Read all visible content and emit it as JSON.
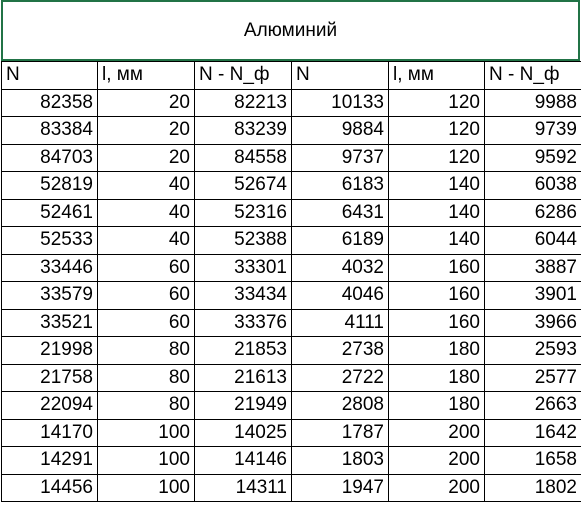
{
  "sheet": {
    "title": "Алюминий",
    "headers": [
      "N",
      "l, мм",
      "N - N_ф",
      "N",
      "l, мм",
      "N - N_ф"
    ],
    "rows": [
      [
        "82358",
        "20",
        "82213",
        "10133",
        "120",
        "9988"
      ],
      [
        "83384",
        "20",
        "83239",
        "9884",
        "120",
        "9739"
      ],
      [
        "84703",
        "20",
        "84558",
        "9737",
        "120",
        "9592"
      ],
      [
        "52819",
        "40",
        "52674",
        "6183",
        "140",
        "6038"
      ],
      [
        "52461",
        "40",
        "52316",
        "6431",
        "140",
        "6286"
      ],
      [
        "52533",
        "40",
        "52388",
        "6189",
        "140",
        "6044"
      ],
      [
        "33446",
        "60",
        "33301",
        "4032",
        "160",
        "3887"
      ],
      [
        "33579",
        "60",
        "33434",
        "4046",
        "160",
        "3901"
      ],
      [
        "33521",
        "60",
        "33376",
        "4111",
        "160",
        "3966"
      ],
      [
        "21998",
        "80",
        "21853",
        "2738",
        "180",
        "2593"
      ],
      [
        "21758",
        "80",
        "21613",
        "2722",
        "180",
        "2577"
      ],
      [
        "22094",
        "80",
        "21949",
        "2808",
        "180",
        "2663"
      ],
      [
        "14170",
        "100",
        "14025",
        "1787",
        "200",
        "1642"
      ],
      [
        "14291",
        "100",
        "14146",
        "1803",
        "200",
        "1658"
      ],
      [
        "14456",
        "100",
        "14311",
        "1947",
        "200",
        "1802"
      ]
    ],
    "selection_color": "#217346"
  }
}
